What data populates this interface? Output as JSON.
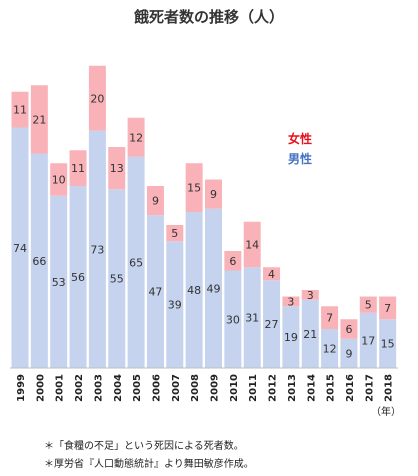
{
  "chart_data": {
    "type": "bar",
    "stacked": true,
    "title": "餓死者数の推移（人）",
    "categories": [
      "1999",
      "2000",
      "2001",
      "2002",
      "2003",
      "2004",
      "2005",
      "2006",
      "2007",
      "2008",
      "2009",
      "2010",
      "2011",
      "2012",
      "2013",
      "2014",
      "2015",
      "2016",
      "2017",
      "2018"
    ],
    "series": [
      {
        "name": "男性",
        "color": "#c5d3ee",
        "values": [
          74,
          66,
          53,
          56,
          73,
          55,
          65,
          47,
          39,
          48,
          49,
          30,
          31,
          27,
          19,
          21,
          12,
          9,
          17,
          15
        ]
      },
      {
        "name": "女性",
        "color": "#f9b3b8",
        "values": [
          11,
          21,
          10,
          11,
          20,
          13,
          12,
          9,
          5,
          15,
          9,
          6,
          14,
          4,
          3,
          3,
          7,
          6,
          5,
          7
        ]
      }
    ],
    "legend": [
      {
        "label": "女性",
        "color": "#e8101c"
      },
      {
        "label": "男性",
        "color": "#4472c4"
      }
    ],
    "legend_position": "top-right",
    "xunit": "（年）",
    "ylim": [
      0,
      90
    ],
    "grid": false
  },
  "notes": [
    "＊「食糧の不足」という死因による死者数。",
    "＊厚労省『人口動態統計』より舞田敏彦作成。"
  ]
}
